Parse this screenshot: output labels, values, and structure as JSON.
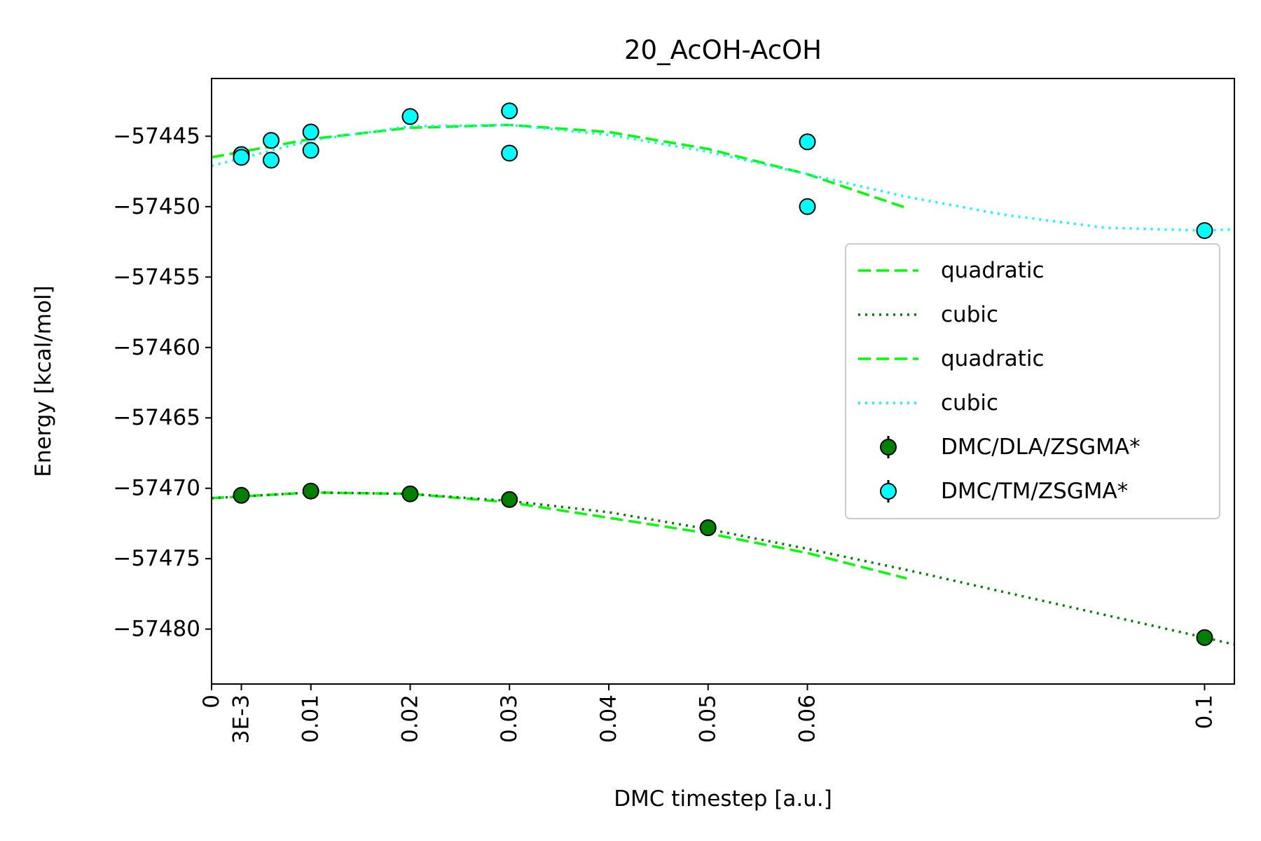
{
  "chart_data": {
    "type": "scatter",
    "title": "20_AcOH-AcOH",
    "xlabel": "DMC timestep [a.u.]",
    "ylabel": "Energy [kcal/mol]",
    "xlim": [
      0,
      0.103
    ],
    "ylim": [
      -57483.9,
      -57440.9
    ],
    "x_ticks": [
      {
        "value": 0,
        "label": "0"
      },
      {
        "value": 0.003,
        "label": "3E-3"
      },
      {
        "value": 0.01,
        "label": "0.01"
      },
      {
        "value": 0.02,
        "label": "0.02"
      },
      {
        "value": 0.03,
        "label": "0.03"
      },
      {
        "value": 0.04,
        "label": "0.04"
      },
      {
        "value": 0.05,
        "label": "0.05"
      },
      {
        "value": 0.06,
        "label": "0.06"
      },
      {
        "value": 0.1,
        "label": "0.1"
      }
    ],
    "y_ticks": [
      {
        "value": -57445,
        "label": "−57445"
      },
      {
        "value": -57450,
        "label": "−57450"
      },
      {
        "value": -57455,
        "label": "−57455"
      },
      {
        "value": -57460,
        "label": "−57460"
      },
      {
        "value": -57465,
        "label": "−57465"
      },
      {
        "value": -57470,
        "label": "−57470"
      },
      {
        "value": -57475,
        "label": "−57475"
      },
      {
        "value": -57480,
        "label": "−57480"
      }
    ],
    "grid": false,
    "legend_position": "center-right",
    "series": [
      {
        "name": "DMC/DLA/ZSGMA*",
        "kind": "points",
        "color": "#008000",
        "points": [
          {
            "x": 0.003,
            "y": -57470.5
          },
          {
            "x": 0.01,
            "y": -57470.2
          },
          {
            "x": 0.02,
            "y": -57470.4
          },
          {
            "x": 0.03,
            "y": -57470.8
          },
          {
            "x": 0.05,
            "y": -57472.8
          },
          {
            "x": 0.1,
            "y": -57480.6
          }
        ]
      },
      {
        "name": "DMC/TM/ZSGMA*",
        "kind": "points",
        "color": "#00ffff",
        "points": [
          {
            "x": 0.003,
            "y": -57446.3
          },
          {
            "x": 0.003,
            "y": -57446.5
          },
          {
            "x": 0.006,
            "y": -57445.3
          },
          {
            "x": 0.006,
            "y": -57446.7
          },
          {
            "x": 0.01,
            "y": -57444.7
          },
          {
            "x": 0.01,
            "y": -57446.0
          },
          {
            "x": 0.02,
            "y": -57443.6
          },
          {
            "x": 0.03,
            "y": -57443.2
          },
          {
            "x": 0.03,
            "y": -57446.2
          },
          {
            "x": 0.06,
            "y": -57445.4
          },
          {
            "x": 0.06,
            "y": -57450.0
          },
          {
            "x": 0.1,
            "y": -57451.7
          }
        ]
      },
      {
        "name": "quadratic",
        "kind": "fit",
        "color": "#00ff00",
        "dash": "dashed",
        "points": [
          {
            "x": 0.0,
            "y": -57470.7
          },
          {
            "x": 0.01,
            "y": -57470.3
          },
          {
            "x": 0.02,
            "y": -57470.4
          },
          {
            "x": 0.03,
            "y": -57471.0
          },
          {
            "x": 0.04,
            "y": -57472.1
          },
          {
            "x": 0.05,
            "y": -57473.2
          },
          {
            "x": 0.06,
            "y": -57474.6
          },
          {
            "x": 0.07,
            "y": -57476.4
          }
        ]
      },
      {
        "name": "cubic",
        "kind": "fit",
        "color": "#008000",
        "dash": "dotted",
        "points": [
          {
            "x": 0.0,
            "y": -57470.7
          },
          {
            "x": 0.01,
            "y": -57470.3
          },
          {
            "x": 0.02,
            "y": -57470.4
          },
          {
            "x": 0.03,
            "y": -57470.9
          },
          {
            "x": 0.04,
            "y": -57471.7
          },
          {
            "x": 0.05,
            "y": -57472.9
          },
          {
            "x": 0.06,
            "y": -57474.3
          },
          {
            "x": 0.07,
            "y": -57475.8
          },
          {
            "x": 0.08,
            "y": -57477.4
          },
          {
            "x": 0.09,
            "y": -57479.0
          },
          {
            "x": 0.1,
            "y": -57480.6
          },
          {
            "x": 0.103,
            "y": -57481.1
          }
        ]
      },
      {
        "name": "quadratic",
        "kind": "fit",
        "color": "#00ff00",
        "dash": "dashed",
        "points": [
          {
            "x": 0.0,
            "y": -57446.5
          },
          {
            "x": 0.01,
            "y": -57445.2
          },
          {
            "x": 0.02,
            "y": -57444.4
          },
          {
            "x": 0.03,
            "y": -57444.2
          },
          {
            "x": 0.04,
            "y": -57444.7
          },
          {
            "x": 0.05,
            "y": -57445.9
          },
          {
            "x": 0.06,
            "y": -57447.7
          },
          {
            "x": 0.07,
            "y": -57450.1
          }
        ]
      },
      {
        "name": "cubic",
        "kind": "fit",
        "color": "#00ffff",
        "dash": "dotted",
        "points": [
          {
            "x": 0.0,
            "y": -57447.1
          },
          {
            "x": 0.01,
            "y": -57445.3
          },
          {
            "x": 0.02,
            "y": -57444.3
          },
          {
            "x": 0.03,
            "y": -57444.2
          },
          {
            "x": 0.04,
            "y": -57444.9
          },
          {
            "x": 0.05,
            "y": -57446.1
          },
          {
            "x": 0.06,
            "y": -57447.7
          },
          {
            "x": 0.07,
            "y": -57449.3
          },
          {
            "x": 0.08,
            "y": -57450.6
          },
          {
            "x": 0.09,
            "y": -57451.5
          },
          {
            "x": 0.1,
            "y": -57451.7
          },
          {
            "x": 0.103,
            "y": -57451.6
          }
        ]
      }
    ],
    "legend_order": [
      {
        "series": 2,
        "label": "quadratic"
      },
      {
        "series": 3,
        "label": "cubic"
      },
      {
        "series": 4,
        "label": "quadratic"
      },
      {
        "series": 5,
        "label": "cubic"
      },
      {
        "series": 0,
        "label": "DMC/DLA/ZSGMA*"
      },
      {
        "series": 1,
        "label": "DMC/TM/ZSGMA*"
      }
    ]
  }
}
